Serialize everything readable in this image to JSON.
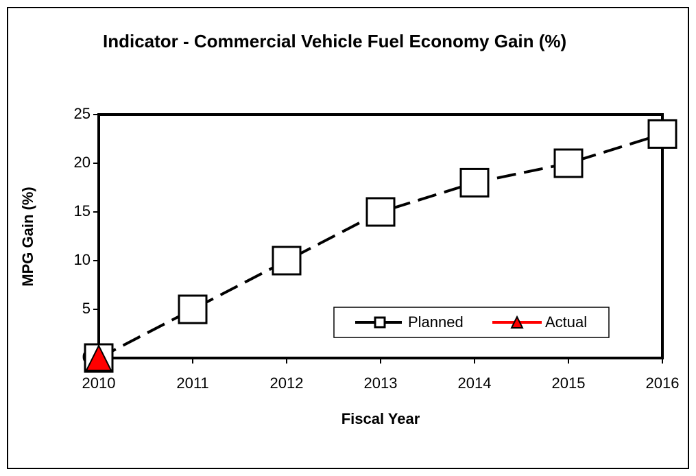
{
  "chart_data": {
    "type": "line",
    "title": "Indicator - Commercial Vehicle Fuel Economy Gain (%)",
    "x_label": "Fiscal Year",
    "y_label": "MPG Gain (%)",
    "x": [
      2010,
      2011,
      2012,
      2013,
      2014,
      2015,
      2016
    ],
    "series": [
      {
        "name": "Planned",
        "color": "#000000",
        "values": [
          0,
          5,
          10,
          15,
          18,
          20,
          23
        ]
      },
      {
        "name": "Actual",
        "color": "#ff0000",
        "values": [
          0,
          null,
          null,
          null,
          null,
          null,
          null
        ]
      }
    ],
    "xlim": [
      2010,
      2016
    ],
    "xticks": [
      2010,
      2011,
      2012,
      2013,
      2014,
      2015,
      2016
    ],
    "ylim": [
      0,
      25
    ],
    "yticks": [
      0,
      5,
      10,
      15,
      20,
      25
    ],
    "legend": "lower right"
  }
}
